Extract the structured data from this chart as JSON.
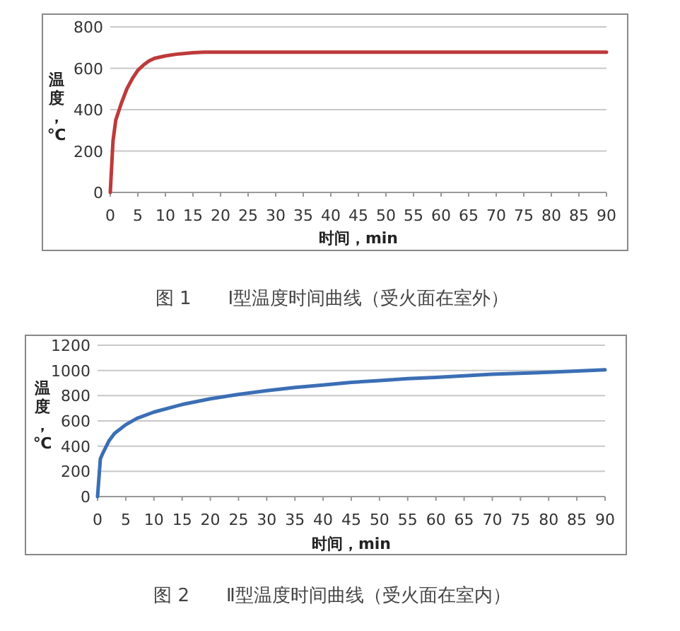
{
  "chart_data": [
    {
      "type": "line",
      "xlabel": "时间，min",
      "ylabel": "温度，℃",
      "annotations": [
        "图 1　　Ⅰ型温度时间曲线（受火面在室外）"
      ],
      "x": [
        0,
        0.5,
        1,
        2,
        3,
        4,
        5,
        6,
        7,
        8,
        10,
        12,
        15,
        17,
        20,
        30,
        40,
        50,
        60,
        70,
        80,
        90
      ],
      "series": [
        {
          "color": "#be3a3a",
          "values": [
            0,
            250,
            350,
            430,
            500,
            550,
            590,
            615,
            635,
            648,
            660,
            668,
            675,
            678,
            678,
            678,
            678,
            678,
            678,
            678,
            678,
            678
          ]
        }
      ],
      "xlim": [
        0,
        90
      ],
      "ylim": [
        0,
        800
      ],
      "xticks": [
        0,
        5,
        10,
        15,
        20,
        25,
        30,
        35,
        40,
        45,
        50,
        55,
        60,
        65,
        70,
        75,
        80,
        85,
        90
      ],
      "yticks": [
        0,
        200,
        400,
        600,
        800
      ],
      "grid": "y"
    },
    {
      "type": "line",
      "xlabel": "时间，min",
      "ylabel": "温度，℃",
      "annotations": [
        "图 2　　Ⅱ型温度时间曲线（受火面在室内）"
      ],
      "x": [
        0,
        0.5,
        1,
        2,
        3,
        5,
        7,
        10,
        15,
        20,
        25,
        30,
        35,
        40,
        45,
        50,
        55,
        60,
        70,
        80,
        90
      ],
      "series": [
        {
          "color": "#3b6eb5",
          "values": [
            0,
            300,
            350,
            440,
            500,
            570,
            620,
            670,
            730,
            775,
            810,
            840,
            865,
            885,
            905,
            920,
            935,
            945,
            970,
            985,
            1005
          ]
        }
      ],
      "xlim": [
        0,
        90
      ],
      "ylim": [
        0,
        1200
      ],
      "xticks": [
        0,
        5,
        10,
        15,
        20,
        25,
        30,
        35,
        40,
        45,
        50,
        55,
        60,
        65,
        70,
        75,
        80,
        85,
        90
      ],
      "yticks": [
        0,
        200,
        400,
        600,
        800,
        1000,
        1200
      ],
      "grid": "y"
    }
  ]
}
